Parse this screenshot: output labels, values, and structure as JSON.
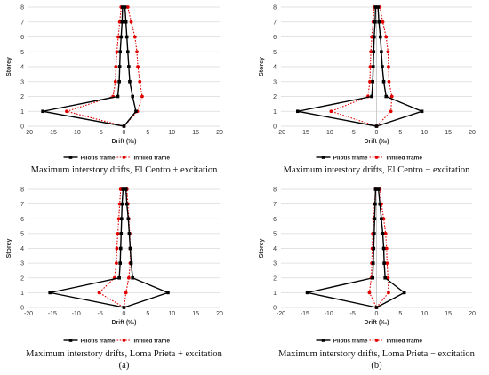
{
  "chart_data": [
    {
      "type": "line",
      "caption": "Maximum interstory drifts, El Centro + excitation",
      "panel_label": "",
      "xlabel": "Drift (‰)",
      "ylabel": "Storey",
      "xlim": [
        -20,
        20
      ],
      "ylim": [
        0,
        8
      ],
      "xticks": [
        -20,
        -15,
        -10,
        -5,
        0,
        5,
        10,
        15,
        20
      ],
      "yticks": [
        0,
        1,
        2,
        3,
        4,
        5,
        6,
        7,
        8
      ],
      "grid": true,
      "legend_position": "bottom",
      "series": [
        {
          "name": "Pilotis frame",
          "color": "#000000",
          "style": "solid",
          "marker": "square",
          "points": [
            [
              0,
              0
            ],
            [
              2.5,
              1
            ],
            [
              1.8,
              2
            ],
            [
              1.2,
              3
            ],
            [
              1.0,
              4
            ],
            [
              0.8,
              5
            ],
            [
              0.6,
              6
            ],
            [
              0.4,
              7
            ],
            [
              0.2,
              8
            ],
            [
              -0.3,
              8
            ],
            [
              -0.4,
              7
            ],
            [
              -0.6,
              6
            ],
            [
              -0.8,
              5
            ],
            [
              -0.9,
              4
            ],
            [
              -1.0,
              3
            ],
            [
              -1.3,
              2
            ],
            [
              -17,
              1
            ],
            [
              0,
              0
            ]
          ]
        },
        {
          "name": "Infilled frame",
          "color": "#e00000",
          "style": "dotted",
          "marker": "circle",
          "points": [
            [
              0,
              0
            ],
            [
              2.8,
              1
            ],
            [
              3.8,
              2
            ],
            [
              3.3,
              3
            ],
            [
              2.9,
              4
            ],
            [
              2.7,
              5
            ],
            [
              2.3,
              6
            ],
            [
              1.5,
              7
            ],
            [
              0.8,
              8
            ],
            [
              -0.6,
              8
            ],
            [
              -0.9,
              7
            ],
            [
              -1.2,
              6
            ],
            [
              -1.5,
              5
            ],
            [
              -1.7,
              4
            ],
            [
              -1.8,
              3
            ],
            [
              -2.3,
              2
            ],
            [
              -12,
              1
            ],
            [
              0,
              0
            ]
          ]
        }
      ]
    },
    {
      "type": "line",
      "caption": "Maximum interstory drifts, El Centro − excitation",
      "panel_label": "",
      "xlabel": "Drift (‰)",
      "ylabel": "Storey",
      "xlim": [
        -20,
        20
      ],
      "ylim": [
        0,
        8
      ],
      "xticks": [
        -20,
        -15,
        -10,
        -5,
        0,
        5,
        10,
        15,
        20
      ],
      "yticks": [
        0,
        1,
        2,
        3,
        4,
        5,
        6,
        7,
        8
      ],
      "grid": true,
      "legend_position": "bottom",
      "series": [
        {
          "name": "Pilotis frame",
          "color": "#000000",
          "style": "solid",
          "marker": "square",
          "points": [
            [
              0,
              0
            ],
            [
              9.5,
              1
            ],
            [
              2.0,
              2
            ],
            [
              1.5,
              3
            ],
            [
              1.2,
              4
            ],
            [
              1.0,
              5
            ],
            [
              0.8,
              6
            ],
            [
              0.5,
              7
            ],
            [
              0.3,
              8
            ],
            [
              -0.2,
              8
            ],
            [
              -0.3,
              7
            ],
            [
              -0.5,
              6
            ],
            [
              -0.6,
              5
            ],
            [
              -0.7,
              4
            ],
            [
              -0.8,
              3
            ],
            [
              -1.0,
              2
            ],
            [
              -16.5,
              1
            ],
            [
              0,
              0
            ]
          ]
        },
        {
          "name": "Infilled frame",
          "color": "#e00000",
          "style": "dotted",
          "marker": "circle",
          "points": [
            [
              0,
              0
            ],
            [
              3.0,
              1
            ],
            [
              3.2,
              2
            ],
            [
              2.6,
              3
            ],
            [
              2.5,
              4
            ],
            [
              2.4,
              5
            ],
            [
              2.0,
              6
            ],
            [
              1.3,
              7
            ],
            [
              0.7,
              8
            ],
            [
              -0.5,
              8
            ],
            [
              -0.7,
              7
            ],
            [
              -1.0,
              6
            ],
            [
              -1.2,
              5
            ],
            [
              -1.3,
              4
            ],
            [
              -1.4,
              3
            ],
            [
              -1.8,
              2
            ],
            [
              -9.5,
              1
            ],
            [
              0,
              0
            ]
          ]
        }
      ]
    },
    {
      "type": "line",
      "caption": "Maximum interstory drifts, Loma Prieta + excitation",
      "panel_label": "(a)",
      "xlabel": "Drift (‰)",
      "ylabel": "Storey",
      "xlim": [
        -20,
        20
      ],
      "ylim": [
        0,
        8
      ],
      "xticks": [
        -20,
        -15,
        -10,
        -5,
        0,
        5,
        10,
        15,
        20
      ],
      "yticks": [
        0,
        1,
        2,
        3,
        4,
        5,
        6,
        7,
        8
      ],
      "grid": true,
      "legend_position": "bottom",
      "series": [
        {
          "name": "Pilotis frame",
          "color": "#000000",
          "style": "solid",
          "marker": "square",
          "points": [
            [
              0,
              0
            ],
            [
              9.2,
              1
            ],
            [
              1.8,
              2
            ],
            [
              1.5,
              3
            ],
            [
              1.3,
              4
            ],
            [
              1.1,
              5
            ],
            [
              0.9,
              6
            ],
            [
              0.6,
              7
            ],
            [
              0.4,
              8
            ],
            [
              -0.2,
              8
            ],
            [
              -0.4,
              7
            ],
            [
              -0.5,
              6
            ],
            [
              -0.6,
              5
            ],
            [
              -0.7,
              4
            ],
            [
              -0.8,
              3
            ],
            [
              -1.0,
              2
            ],
            [
              -15.5,
              1
            ],
            [
              0,
              0
            ]
          ]
        },
        {
          "name": "Infilled frame",
          "color": "#e00000",
          "style": "dotted",
          "marker": "circle",
          "points": [
            [
              0,
              0
            ],
            [
              0.4,
              1
            ],
            [
              1.0,
              2
            ],
            [
              1.3,
              3
            ],
            [
              1.3,
              4
            ],
            [
              1.2,
              5
            ],
            [
              1.0,
              6
            ],
            [
              0.8,
              7
            ],
            [
              0.6,
              8
            ],
            [
              -0.7,
              8
            ],
            [
              -0.9,
              7
            ],
            [
              -1.1,
              6
            ],
            [
              -1.3,
              5
            ],
            [
              -1.5,
              4
            ],
            [
              -1.6,
              3
            ],
            [
              -2.0,
              2
            ],
            [
              -5.2,
              1
            ],
            [
              0,
              0
            ]
          ]
        }
      ]
    },
    {
      "type": "line",
      "caption": "Maximum interstory drifts, Loma Prieta − excitation",
      "panel_label": "(b)",
      "xlabel": "Drift (‰)",
      "ylabel": "Storey",
      "xlim": [
        -20,
        20
      ],
      "ylim": [
        0,
        8
      ],
      "xticks": [
        -20,
        -15,
        -10,
        -5,
        0,
        5,
        10,
        15,
        20
      ],
      "yticks": [
        0,
        1,
        2,
        3,
        4,
        5,
        6,
        7,
        8
      ],
      "grid": true,
      "legend_position": "bottom",
      "series": [
        {
          "name": "Pilotis frame",
          "color": "#000000",
          "style": "solid",
          "marker": "square",
          "points": [
            [
              0,
              0
            ],
            [
              5.8,
              1
            ],
            [
              1.8,
              2
            ],
            [
              1.6,
              3
            ],
            [
              1.5,
              4
            ],
            [
              1.3,
              5
            ],
            [
              1.0,
              6
            ],
            [
              0.7,
              7
            ],
            [
              0.4,
              8
            ],
            [
              -0.2,
              8
            ],
            [
              -0.3,
              7
            ],
            [
              -0.4,
              6
            ],
            [
              -0.5,
              5
            ],
            [
              -0.6,
              4
            ],
            [
              -0.7,
              3
            ],
            [
              -0.8,
              2
            ],
            [
              -14.5,
              1
            ],
            [
              0,
              0
            ]
          ]
        },
        {
          "name": "Infilled frame",
          "color": "#e00000",
          "style": "dotted",
          "marker": "circle",
          "points": [
            [
              0,
              0
            ],
            [
              2.5,
              1
            ],
            [
              2.4,
              2
            ],
            [
              2.2,
              3
            ],
            [
              2.1,
              4
            ],
            [
              1.9,
              5
            ],
            [
              1.5,
              6
            ],
            [
              1.0,
              7
            ],
            [
              0.7,
              8
            ],
            [
              -0.2,
              8
            ],
            [
              -0.4,
              7
            ],
            [
              -0.6,
              6
            ],
            [
              -0.8,
              5
            ],
            [
              -0.9,
              4
            ],
            [
              -1.0,
              3
            ],
            [
              -1.1,
              2
            ],
            [
              -1.5,
              1
            ],
            [
              0,
              0
            ]
          ]
        }
      ]
    }
  ]
}
